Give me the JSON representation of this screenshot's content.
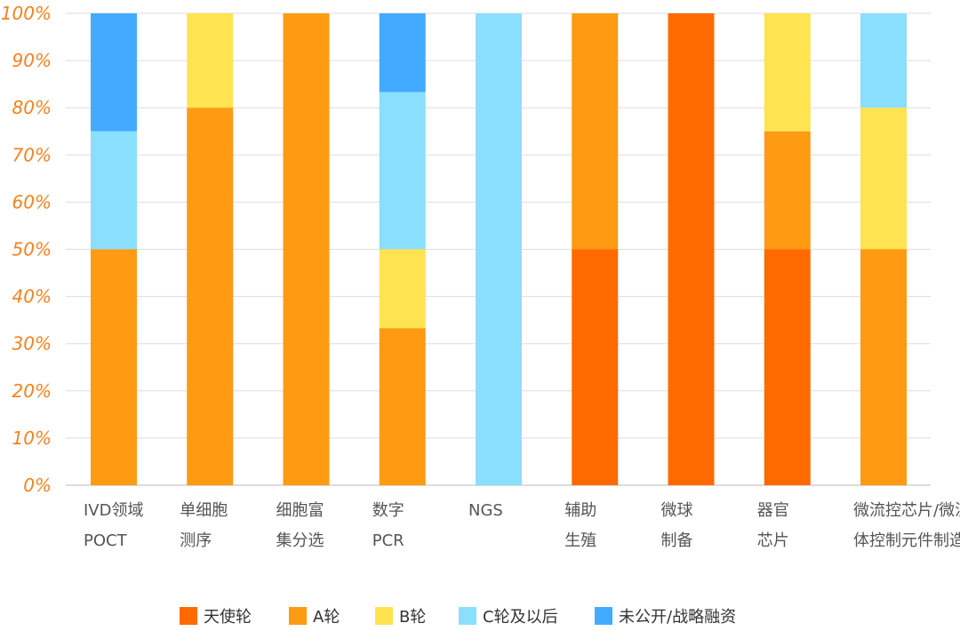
{
  "chart_data": {
    "type": "bar",
    "stacked": true,
    "title": "",
    "xlabel": "",
    "ylabel": "",
    "ylim": [
      0,
      100
    ],
    "y_ticks": [
      "0%",
      "10%",
      "20%",
      "30%",
      "40%",
      "50%",
      "60%",
      "70%",
      "80%",
      "90%",
      "100%"
    ],
    "grid": true,
    "legend_position": "bottom",
    "categories": [
      [
        "IVD领域",
        "POCT"
      ],
      [
        "单细胞",
        "测序"
      ],
      [
        "细胞富",
        "集分选"
      ],
      [
        "数字",
        "PCR"
      ],
      [
        "NGS"
      ],
      [
        "辅助",
        "生殖"
      ],
      [
        "微球",
        "制备"
      ],
      [
        "器官",
        "芯片"
      ],
      [
        "微流控芯片/微流",
        "体控制元件制造"
      ]
    ],
    "series": [
      {
        "name": "天使轮",
        "color": "#FF6A00",
        "values": [
          0,
          0,
          0,
          0,
          0,
          50,
          100,
          50,
          0
        ]
      },
      {
        "name": "A轮",
        "color": "#FF9A13",
        "values": [
          50,
          80,
          100,
          33.3,
          0,
          50,
          0,
          25,
          50
        ]
      },
      {
        "name": "B轮",
        "color": "#FFE350",
        "values": [
          0,
          20,
          0,
          16.7,
          0,
          0,
          0,
          25,
          30
        ]
      },
      {
        "name": "C轮及以后",
        "color": "#8ADFFF",
        "values": [
          25,
          0,
          0,
          33.3,
          100,
          0,
          0,
          0,
          20
        ]
      },
      {
        "name": "未公开/战略融资",
        "color": "#42ABFF",
        "values": [
          25,
          0,
          0,
          16.7,
          0,
          0,
          0,
          0,
          0
        ]
      }
    ]
  }
}
